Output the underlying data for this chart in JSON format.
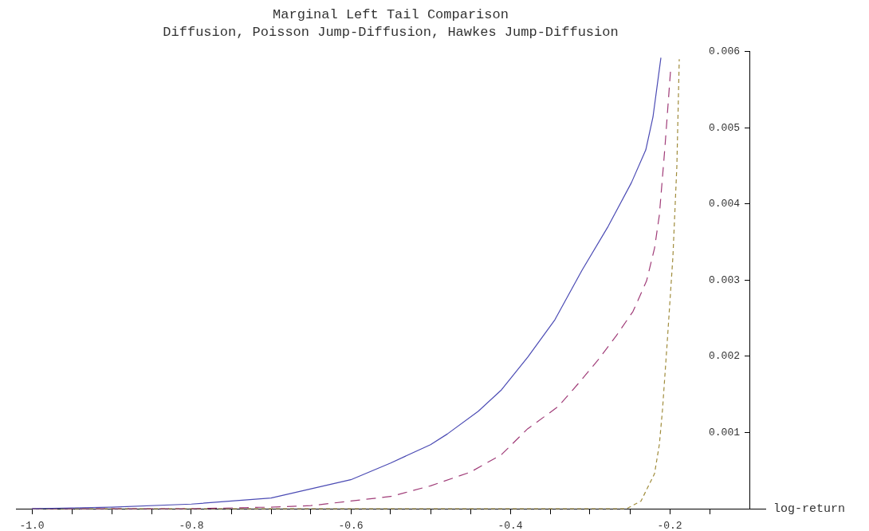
{
  "chart_data": {
    "type": "line",
    "title": "Marginal Left Tail Comparison",
    "subtitle": "Diffusion, Poisson Jump-Diffusion, Hawkes Jump-Diffusion",
    "xlabel": "log-return",
    "xlim": [
      -1.02,
      -0.08
    ],
    "ylim": [
      0,
      0.006
    ],
    "xticks": [
      {
        "value": -1.0,
        "label": "-1.0"
      },
      {
        "value": -0.95,
        "label": null
      },
      {
        "value": -0.9,
        "label": null
      },
      {
        "value": -0.85,
        "label": null
      },
      {
        "value": -0.8,
        "label": "-0.8"
      },
      {
        "value": -0.75,
        "label": null
      },
      {
        "value": -0.7,
        "label": null
      },
      {
        "value": -0.65,
        "label": null
      },
      {
        "value": -0.6,
        "label": "-0.6"
      },
      {
        "value": -0.55,
        "label": null
      },
      {
        "value": -0.5,
        "label": null
      },
      {
        "value": -0.45,
        "label": null
      },
      {
        "value": -0.4,
        "label": "-0.4"
      },
      {
        "value": -0.35,
        "label": null
      },
      {
        "value": -0.3,
        "label": null
      },
      {
        "value": -0.25,
        "label": null
      },
      {
        "value": -0.2,
        "label": "-0.2"
      },
      {
        "value": -0.15,
        "label": null
      }
    ],
    "yticks": [
      0.001,
      0.002,
      0.003,
      0.004,
      0.005,
      0.006
    ],
    "grid": false,
    "legend": false,
    "marker": "none",
    "series": [
      {
        "color": "#4b4bb4",
        "line_style": "solid",
        "x": [
          -1.0,
          -0.9,
          -0.8,
          -0.7,
          -0.6,
          -0.55,
          -0.5,
          -0.479,
          -0.44,
          -0.411,
          -0.378,
          -0.344,
          -0.31,
          -0.277,
          -0.248,
          -0.23,
          -0.221,
          -0.211
        ],
        "values": [
          0.0,
          2e-05,
          6e-05,
          0.00014,
          0.00038,
          0.0006,
          0.00084,
          0.00098,
          0.00128,
          0.00156,
          0.00199,
          0.00248,
          0.00313,
          0.00371,
          0.00428,
          0.00471,
          0.00514,
          0.00592
        ]
      },
      {
        "color": "#a03c78",
        "line_style": "dashed",
        "x": [
          -1.0,
          -0.8,
          -0.7,
          -0.65,
          -0.6,
          -0.55,
          -0.5,
          -0.45,
          -0.411,
          -0.378,
          -0.34,
          -0.314,
          -0.29,
          -0.267,
          -0.246,
          -0.229,
          -0.219,
          -0.213,
          -0.206,
          -0.199
        ],
        "values": [
          0.0,
          0.0,
          2e-05,
          4e-05,
          0.0001,
          0.00016,
          0.0003,
          0.00048,
          0.00071,
          0.00105,
          0.00134,
          0.00165,
          0.00195,
          0.00227,
          0.00259,
          0.00299,
          0.00342,
          0.00385,
          0.00474,
          0.00574
        ]
      },
      {
        "color": "#a08c3c",
        "line_style": "dotted",
        "x": [
          -1.0,
          -0.254,
          -0.236,
          -0.219,
          -0.213,
          -0.209,
          -0.203,
          -0.196,
          -0.191,
          -0.188
        ],
        "values": [
          0.0,
          0.0,
          0.0001,
          0.00046,
          0.00084,
          0.0013,
          0.0022,
          0.0033,
          0.0045,
          0.0059
        ]
      }
    ]
  }
}
